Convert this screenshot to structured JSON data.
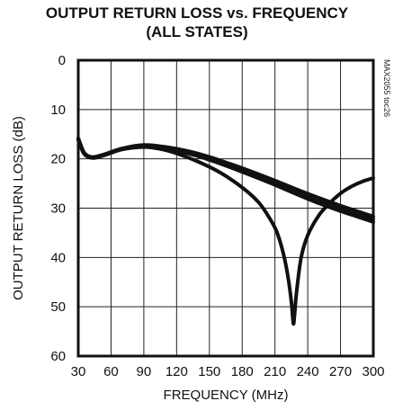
{
  "chart_data": {
    "type": "line",
    "title": "OUTPUT RETURN LOSS vs. FREQUENCY\n(ALL STATES)",
    "xlabel": "FREQUENCY (MHz)",
    "ylabel": "OUTPUT RETURN LOSS (dB)",
    "side_note": "MAX2055 toc26",
    "xlim": [
      30,
      300
    ],
    "ylim": [
      0,
      60
    ],
    "y_inverted": true,
    "grid": true,
    "xticks": [
      30,
      60,
      90,
      120,
      150,
      180,
      210,
      240,
      270,
      300
    ],
    "yticks": [
      0,
      10,
      20,
      30,
      40,
      50,
      60
    ],
    "series": [
      {
        "x": [
          30,
          35,
          40,
          45,
          55,
          70,
          90,
          110,
          130,
          150,
          170,
          190,
          210,
          230,
          250,
          270,
          285,
          300
        ],
        "y": [
          15.8,
          18.6,
          19.5,
          19.6,
          19.0,
          17.9,
          17.2,
          17.6,
          18.4,
          19.6,
          21.1,
          22.7,
          24.4,
          26.2,
          27.9,
          29.5,
          30.6,
          31.7
        ]
      },
      {
        "x": [
          30,
          35,
          40,
          45,
          55,
          70,
          90,
          110,
          130,
          150,
          170,
          190,
          210,
          230,
          250,
          270,
          285,
          300
        ],
        "y": [
          16.2,
          18.9,
          19.7,
          19.8,
          19.2,
          18.1,
          17.5,
          18.0,
          18.9,
          20.2,
          21.8,
          23.5,
          25.3,
          27.2,
          29.0,
          30.6,
          31.7,
          32.8
        ]
      },
      {
        "x": [
          30,
          35,
          40,
          45,
          55,
          70,
          90,
          110,
          130,
          150,
          170,
          190,
          210,
          230,
          250,
          270,
          285,
          300
        ],
        "y": [
          15.9,
          18.7,
          19.6,
          19.7,
          19.1,
          18.0,
          17.4,
          17.8,
          18.6,
          19.9,
          21.4,
          23.1,
          24.8,
          26.7,
          28.4,
          30.0,
          31.1,
          32.2
        ]
      },
      {
        "x": [
          30,
          35,
          40,
          45,
          55,
          70,
          90,
          105,
          120,
          140,
          160,
          180,
          195,
          205,
          212,
          218,
          222,
          225,
          226,
          227,
          228,
          230,
          234,
          240,
          250,
          260,
          270,
          280,
          290,
          300
        ],
        "y": [
          16.0,
          18.8,
          19.6,
          19.7,
          19.1,
          18.1,
          17.6,
          18.0,
          18.9,
          20.6,
          22.8,
          25.8,
          28.8,
          32.0,
          35.0,
          39.5,
          44.0,
          49.0,
          51.5,
          53.5,
          51.5,
          46.5,
          40.0,
          35.5,
          31.5,
          29.0,
          27.0,
          25.6,
          24.6,
          23.9
        ]
      }
    ]
  }
}
